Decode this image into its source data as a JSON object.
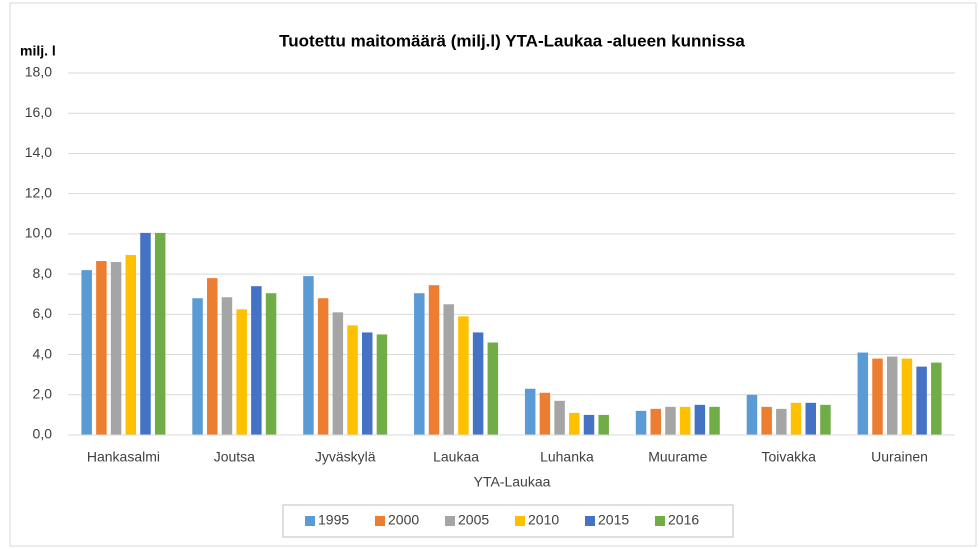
{
  "chart_data": {
    "type": "bar",
    "title": "Tuotettu maitomäärä (milj.l) YTA-Laukaa -alueen kunnissa",
    "y_label": "milj. l",
    "x_label": "YTA-Laukaa",
    "categories": [
      "Hankasalmi",
      "Joutsa",
      "Jyväskylä",
      "Laukaa",
      "Luhanka",
      "Muurame",
      "Toivakka",
      "Uurainen"
    ],
    "series": [
      {
        "name": "1995",
        "color": "#5b9bd5",
        "values": [
          8.2,
          6.8,
          7.9,
          7.05,
          2.3,
          1.2,
          2.0,
          4.1
        ]
      },
      {
        "name": "2000",
        "color": "#ed7d31",
        "values": [
          8.65,
          7.8,
          6.8,
          7.45,
          2.1,
          1.3,
          1.4,
          3.8
        ]
      },
      {
        "name": "2005",
        "color": "#a5a5a5",
        "values": [
          8.6,
          6.85,
          6.1,
          6.5,
          1.7,
          1.4,
          1.3,
          3.9
        ]
      },
      {
        "name": "2010",
        "color": "#ffc000",
        "values": [
          8.95,
          6.25,
          5.45,
          5.9,
          1.1,
          1.4,
          1.6,
          3.8
        ]
      },
      {
        "name": "2015",
        "color": "#4472c4",
        "values": [
          10.05,
          7.4,
          5.1,
          5.1,
          1.0,
          1.5,
          1.6,
          3.4
        ]
      },
      {
        "name": "2016",
        "color": "#70ad47",
        "values": [
          10.05,
          7.05,
          5.0,
          4.6,
          1.0,
          1.4,
          1.5,
          3.6
        ]
      }
    ],
    "ylim": [
      0,
      18
    ],
    "yticks": [
      {
        "value": 0,
        "label": "0,0"
      },
      {
        "value": 2,
        "label": "2,0"
      },
      {
        "value": 4,
        "label": "4,0"
      },
      {
        "value": 6,
        "label": "6,0"
      },
      {
        "value": 8,
        "label": "8,0"
      },
      {
        "value": 10,
        "label": "10,0"
      },
      {
        "value": 12,
        "label": "12,0"
      },
      {
        "value": 14,
        "label": "14,0"
      },
      {
        "value": 16,
        "label": "16,0"
      },
      {
        "value": 18,
        "label": "18,0"
      }
    ],
    "grid": true,
    "legend": "bottom"
  }
}
